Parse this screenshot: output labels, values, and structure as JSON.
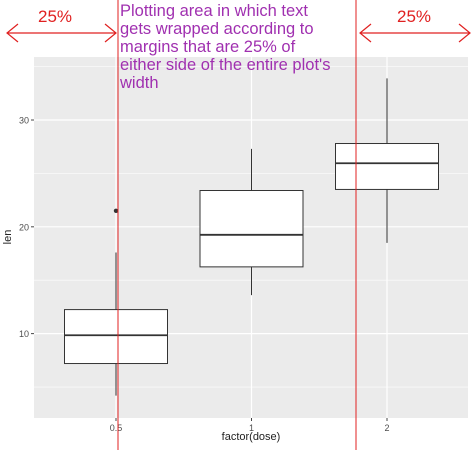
{
  "chart_data": {
    "type": "boxplot",
    "categories": [
      "0.5",
      "1",
      "2"
    ],
    "boxes": [
      {
        "category": "0.5",
        "lower_whisker": 4.2,
        "q1": 7.2,
        "median": 9.85,
        "q3": 12.25,
        "upper_whisker": 17.6,
        "outliers": [
          21.5
        ]
      },
      {
        "category": "1",
        "lower_whisker": 13.6,
        "q1": 16.25,
        "median": 19.25,
        "q3": 23.4,
        "upper_whisker": 27.3,
        "outliers": []
      },
      {
        "category": "2",
        "lower_whisker": 18.5,
        "q1": 23.5,
        "median": 25.95,
        "q3": 27.8,
        "upper_whisker": 33.9,
        "outliers": []
      }
    ],
    "xlabel": "factor(dose)",
    "ylabel": "len",
    "ylim": [
      2.1,
      35.9
    ],
    "yticks": [
      10,
      20,
      30
    ],
    "grid": true,
    "colors": {
      "panel_bg": "#ebebeb",
      "grid_major": "#ffffff",
      "box_fill": "#ffffff",
      "box_stroke": "#333333",
      "annotation_line": "#e02020",
      "annotation_text": "#a030b0"
    },
    "annotation": {
      "text": "Plotting area in which text\ngets wrapped according to\nmargins that are 25% of\neither side of the entire plot's\nwidth",
      "left_label": "25%",
      "right_label": "25%",
      "margin_fraction": 0.25
    }
  }
}
